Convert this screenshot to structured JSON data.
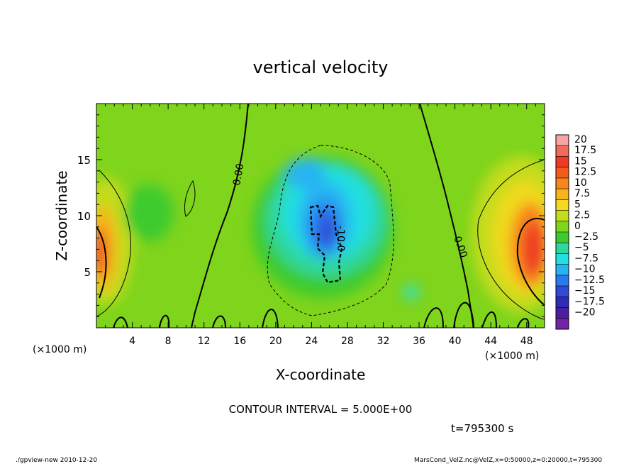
{
  "chart_data": {
    "type": "heatmap",
    "title": "vertical velocity",
    "xlabel": "X-coordinate",
    "ylabel": "Z-coordinate",
    "xunit": "(×1000 m)",
    "yunit": "(×1000 m)",
    "xlim": [
      0,
      50
    ],
    "ylim": [
      0,
      20
    ],
    "xticks": [
      4,
      8,
      12,
      16,
      20,
      24,
      28,
      32,
      36,
      40,
      44,
      48
    ],
    "yticks": [
      5,
      10,
      15
    ],
    "colorbar_levels": [
      "20",
      "17.5",
      "15",
      "12.5",
      "10",
      "7.5",
      "5",
      "2.5",
      "0",
      "−2.5",
      "−5",
      "−7.5",
      "−10",
      "−12.5",
      "−15",
      "−17.5",
      "−20"
    ],
    "colorbar_colors": [
      "#f7a4a4",
      "#f26a5a",
      "#ee3b24",
      "#f25b1a",
      "#f7871d",
      "#f8b31c",
      "#f1d91e",
      "#c4dc1c",
      "#7fd41c",
      "#3ccb2e",
      "#2fd79e",
      "#22dfe0",
      "#27b4f3",
      "#2b79ec",
      "#2f4ad7",
      "#2d2cb5",
      "#4b1ea0",
      "#7323a6"
    ],
    "contour_interval": "CONTOUR INTERVAL = 5.000E+00",
    "contour_labels": [
      "0.00",
      "0.00",
      "-10.0"
    ],
    "features": [
      {
        "kind": "updraft",
        "x": 0.6,
        "z": 7.0,
        "w": 12
      },
      {
        "kind": "updraft",
        "x": 48.5,
        "z": 6.5,
        "w": 18
      },
      {
        "kind": "downdraft",
        "x": 25.5,
        "z": 8.5,
        "w": -12
      }
    ]
  },
  "time_label": "t=795300 s",
  "footer_left": "./gpview-new  2010-12-20",
  "footer_right": "MarsCond_VelZ.nc@VelZ,x=0:50000,z=0:20000,t=795300"
}
